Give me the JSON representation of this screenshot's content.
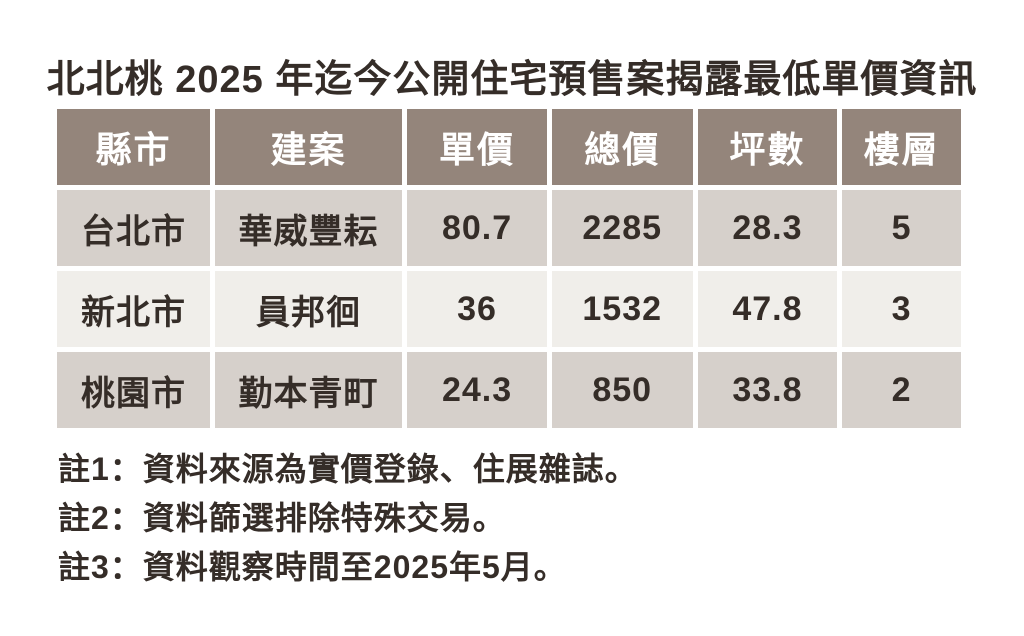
{
  "chart_data": {
    "type": "table",
    "title": "北北桃 2025 年迄今公開住宅預售案揭露最低單價資訊",
    "columns": [
      "縣市",
      "建案",
      "單價",
      "總價",
      "坪數",
      "樓層"
    ],
    "rows": [
      [
        "台北市",
        "華威豐耘",
        "80.7",
        "2285",
        "28.3",
        "5"
      ],
      [
        "新北市",
        "員邦徊",
        "36",
        "1532",
        "47.8",
        "3"
      ],
      [
        "桃園市",
        "勤本青町",
        "24.3",
        "850",
        "33.8",
        "2"
      ]
    ],
    "notes": [
      "註1：資料來源為實價登錄、住展雜誌。",
      "註2：資料篩選排除特殊交易。",
      "註3：資料觀察時間至2025年5月。"
    ],
    "layout": {
      "legend": "none",
      "grid": "off"
    }
  },
  "colors": {
    "header_bg": "#94857b",
    "row_odd_bg": "#d6d0cb",
    "row_even_bg": "#f0eeea",
    "header_text": "#ffffff",
    "body_text": "#352d28",
    "page_bg": "#ffffff"
  }
}
